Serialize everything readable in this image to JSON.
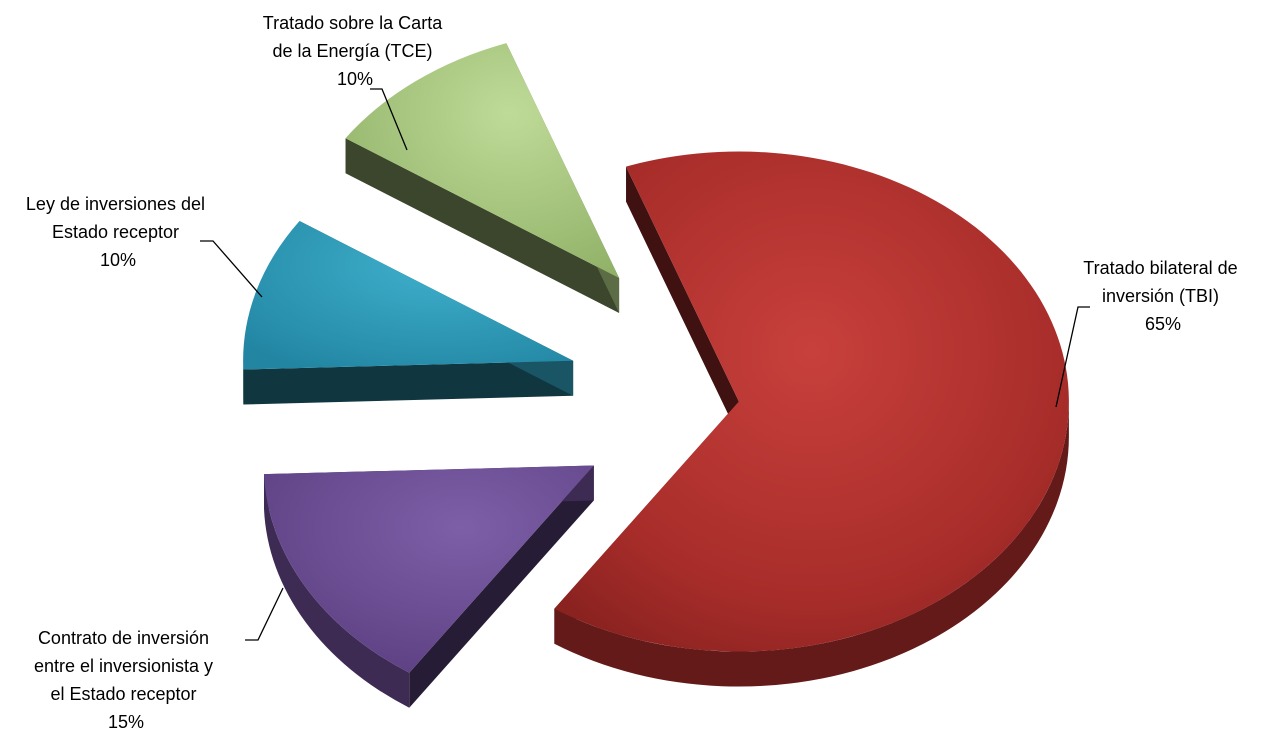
{
  "chart_data": {
    "type": "pie",
    "style": "3d-exploded",
    "title": "",
    "slices": [
      {
        "label_lines": [
          "Tratado bilateral de",
          "inversión (TBI)"
        ],
        "percent_label": "65%",
        "value": 65,
        "color": "#B5302E"
      },
      {
        "label_lines": [
          "Contrato de inversión",
          "entre el inversionista y",
          "el Estado receptor"
        ],
        "percent_label": "15%",
        "value": 15,
        "color": "#6E4F97"
      },
      {
        "label_lines": [
          "Ley de inversiones del",
          "Estado receptor"
        ],
        "percent_label": "10%",
        "value": 10,
        "color": "#2E9AB8"
      },
      {
        "label_lines": [
          "Tratado sobre la Carta",
          "de la Energía (TCE)"
        ],
        "percent_label": "10%",
        "value": 10,
        "color": "#A8C77E"
      }
    ]
  }
}
